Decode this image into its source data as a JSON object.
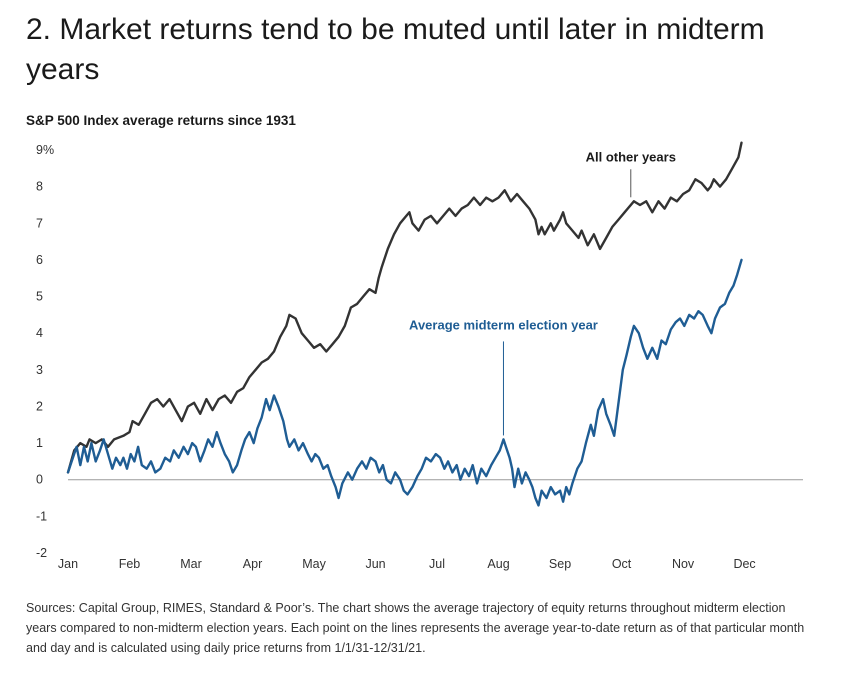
{
  "title": "2. Market returns tend to be muted until later in midterm years",
  "chart_data": {
    "type": "line",
    "subtitle": "S&P 500 Index average returns since 1931",
    "x_categories": [
      "Jan",
      "Feb",
      "Mar",
      "Apr",
      "May",
      "Jun",
      "Jul",
      "Aug",
      "Sep",
      "Oct",
      "Nov",
      "Dec"
    ],
    "y_ticks": [
      "9%",
      "8",
      "7",
      "6",
      "5",
      "4",
      "3",
      "2",
      "1",
      "0",
      "-1",
      "-2"
    ],
    "ylim": [
      -2,
      9
    ],
    "x_range": [
      1,
      12.95
    ],
    "grid": false,
    "zero_line": true,
    "series": [
      {
        "name": "All other years",
        "color": "#333333",
        "points": [
          [
            1.0,
            0.2
          ],
          [
            1.1,
            0.8
          ],
          [
            1.2,
            1.0
          ],
          [
            1.3,
            0.9
          ],
          [
            1.35,
            1.1
          ],
          [
            1.45,
            1.0
          ],
          [
            1.55,
            1.1
          ],
          [
            1.65,
            0.9
          ],
          [
            1.75,
            1.1
          ],
          [
            1.9,
            1.2
          ],
          [
            2.0,
            1.3
          ],
          [
            2.05,
            1.6
          ],
          [
            2.15,
            1.5
          ],
          [
            2.25,
            1.8
          ],
          [
            2.35,
            2.1
          ],
          [
            2.45,
            2.2
          ],
          [
            2.55,
            2.0
          ],
          [
            2.65,
            2.2
          ],
          [
            2.75,
            1.9
          ],
          [
            2.85,
            1.6
          ],
          [
            2.95,
            2.0
          ],
          [
            3.05,
            2.1
          ],
          [
            3.15,
            1.8
          ],
          [
            3.25,
            2.2
          ],
          [
            3.35,
            1.9
          ],
          [
            3.45,
            2.2
          ],
          [
            3.55,
            2.3
          ],
          [
            3.65,
            2.1
          ],
          [
            3.75,
            2.4
          ],
          [
            3.85,
            2.5
          ],
          [
            3.95,
            2.8
          ],
          [
            4.05,
            3.0
          ],
          [
            4.15,
            3.2
          ],
          [
            4.25,
            3.3
          ],
          [
            4.35,
            3.5
          ],
          [
            4.45,
            3.9
          ],
          [
            4.55,
            4.2
          ],
          [
            4.6,
            4.5
          ],
          [
            4.7,
            4.4
          ],
          [
            4.8,
            4.0
          ],
          [
            4.9,
            3.8
          ],
          [
            5.0,
            3.6
          ],
          [
            5.1,
            3.7
          ],
          [
            5.2,
            3.5
          ],
          [
            5.3,
            3.7
          ],
          [
            5.4,
            3.9
          ],
          [
            5.5,
            4.2
          ],
          [
            5.6,
            4.7
          ],
          [
            5.7,
            4.8
          ],
          [
            5.8,
            5.0
          ],
          [
            5.9,
            5.2
          ],
          [
            6.0,
            5.1
          ],
          [
            6.05,
            5.5
          ],
          [
            6.1,
            5.8
          ],
          [
            6.2,
            6.3
          ],
          [
            6.3,
            6.7
          ],
          [
            6.4,
            7.0
          ],
          [
            6.5,
            7.2
          ],
          [
            6.55,
            7.3
          ],
          [
            6.6,
            7.0
          ],
          [
            6.7,
            6.8
          ],
          [
            6.8,
            7.1
          ],
          [
            6.9,
            7.2
          ],
          [
            7.0,
            7.0
          ],
          [
            7.1,
            7.2
          ],
          [
            7.2,
            7.4
          ],
          [
            7.3,
            7.2
          ],
          [
            7.4,
            7.4
          ],
          [
            7.5,
            7.5
          ],
          [
            7.6,
            7.7
          ],
          [
            7.7,
            7.5
          ],
          [
            7.8,
            7.7
          ],
          [
            7.9,
            7.6
          ],
          [
            8.0,
            7.7
          ],
          [
            8.1,
            7.9
          ],
          [
            8.2,
            7.6
          ],
          [
            8.3,
            7.8
          ],
          [
            8.4,
            7.6
          ],
          [
            8.5,
            7.4
          ],
          [
            8.6,
            7.1
          ],
          [
            8.65,
            6.7
          ],
          [
            8.7,
            6.9
          ],
          [
            8.75,
            6.7
          ],
          [
            8.85,
            7.0
          ],
          [
            8.9,
            6.8
          ],
          [
            9.0,
            7.1
          ],
          [
            9.05,
            7.3
          ],
          [
            9.1,
            7.0
          ],
          [
            9.2,
            6.8
          ],
          [
            9.3,
            6.6
          ],
          [
            9.35,
            6.8
          ],
          [
            9.45,
            6.4
          ],
          [
            9.55,
            6.7
          ],
          [
            9.65,
            6.3
          ],
          [
            9.75,
            6.6
          ],
          [
            9.85,
            6.9
          ],
          [
            9.95,
            7.1
          ],
          [
            10.05,
            7.3
          ],
          [
            10.1,
            7.4
          ],
          [
            10.2,
            7.6
          ],
          [
            10.3,
            7.5
          ],
          [
            10.4,
            7.6
          ],
          [
            10.5,
            7.3
          ],
          [
            10.6,
            7.6
          ],
          [
            10.7,
            7.4
          ],
          [
            10.8,
            7.7
          ],
          [
            10.9,
            7.6
          ],
          [
            11.0,
            7.8
          ],
          [
            11.1,
            7.9
          ],
          [
            11.2,
            8.2
          ],
          [
            11.3,
            8.1
          ],
          [
            11.4,
            7.9
          ],
          [
            11.45,
            8.0
          ],
          [
            11.5,
            8.2
          ],
          [
            11.6,
            8.0
          ],
          [
            11.7,
            8.2
          ],
          [
            11.8,
            8.5
          ],
          [
            11.9,
            8.8
          ],
          [
            11.95,
            9.2
          ]
        ]
      },
      {
        "name": "Average midterm election year",
        "color": "#1f5d94",
        "points": [
          [
            1.0,
            0.2
          ],
          [
            1.08,
            0.6
          ],
          [
            1.14,
            0.9
          ],
          [
            1.2,
            0.4
          ],
          [
            1.26,
            0.9
          ],
          [
            1.32,
            0.5
          ],
          [
            1.38,
            1.0
          ],
          [
            1.45,
            0.5
          ],
          [
            1.52,
            0.8
          ],
          [
            1.58,
            1.1
          ],
          [
            1.65,
            0.7
          ],
          [
            1.72,
            0.3
          ],
          [
            1.78,
            0.6
          ],
          [
            1.85,
            0.4
          ],
          [
            1.9,
            0.6
          ],
          [
            1.96,
            0.3
          ],
          [
            2.02,
            0.7
          ],
          [
            2.08,
            0.5
          ],
          [
            2.14,
            0.9
          ],
          [
            2.2,
            0.4
          ],
          [
            2.28,
            0.3
          ],
          [
            2.35,
            0.5
          ],
          [
            2.42,
            0.2
          ],
          [
            2.5,
            0.3
          ],
          [
            2.58,
            0.6
          ],
          [
            2.66,
            0.5
          ],
          [
            2.72,
            0.8
          ],
          [
            2.8,
            0.6
          ],
          [
            2.88,
            0.9
          ],
          [
            2.95,
            0.7
          ],
          [
            3.02,
            1.0
          ],
          [
            3.08,
            0.9
          ],
          [
            3.15,
            0.5
          ],
          [
            3.22,
            0.8
          ],
          [
            3.28,
            1.1
          ],
          [
            3.35,
            0.9
          ],
          [
            3.42,
            1.3
          ],
          [
            3.48,
            1.0
          ],
          [
            3.55,
            0.7
          ],
          [
            3.62,
            0.5
          ],
          [
            3.68,
            0.2
          ],
          [
            3.75,
            0.4
          ],
          [
            3.82,
            0.8
          ],
          [
            3.88,
            1.1
          ],
          [
            3.95,
            1.3
          ],
          [
            4.02,
            1.0
          ],
          [
            4.08,
            1.4
          ],
          [
            4.15,
            1.7
          ],
          [
            4.22,
            2.2
          ],
          [
            4.28,
            1.9
          ],
          [
            4.35,
            2.3
          ],
          [
            4.42,
            2.0
          ],
          [
            4.5,
            1.6
          ],
          [
            4.56,
            1.1
          ],
          [
            4.6,
            0.9
          ],
          [
            4.68,
            1.1
          ],
          [
            4.75,
            0.8
          ],
          [
            4.82,
            1.0
          ],
          [
            4.9,
            0.7
          ],
          [
            4.96,
            0.5
          ],
          [
            5.02,
            0.7
          ],
          [
            5.08,
            0.6
          ],
          [
            5.15,
            0.3
          ],
          [
            5.22,
            0.4
          ],
          [
            5.28,
            0.1
          ],
          [
            5.35,
            -0.2
          ],
          [
            5.4,
            -0.5
          ],
          [
            5.46,
            -0.1
          ],
          [
            5.55,
            0.2
          ],
          [
            5.62,
            0.0
          ],
          [
            5.7,
            0.3
          ],
          [
            5.78,
            0.5
          ],
          [
            5.85,
            0.3
          ],
          [
            5.92,
            0.6
          ],
          [
            6.0,
            0.5
          ],
          [
            6.06,
            0.2
          ],
          [
            6.12,
            0.4
          ],
          [
            6.18,
            0.0
          ],
          [
            6.25,
            -0.1
          ],
          [
            6.32,
            0.2
          ],
          [
            6.4,
            0.0
          ],
          [
            6.46,
            -0.3
          ],
          [
            6.52,
            -0.4
          ],
          [
            6.6,
            -0.2
          ],
          [
            6.68,
            0.1
          ],
          [
            6.75,
            0.3
          ],
          [
            6.82,
            0.6
          ],
          [
            6.9,
            0.5
          ],
          [
            6.98,
            0.7
          ],
          [
            7.05,
            0.6
          ],
          [
            7.12,
            0.3
          ],
          [
            7.18,
            0.5
          ],
          [
            7.25,
            0.2
          ],
          [
            7.32,
            0.4
          ],
          [
            7.38,
            0.0
          ],
          [
            7.45,
            0.3
          ],
          [
            7.52,
            0.1
          ],
          [
            7.58,
            0.4
          ],
          [
            7.65,
            -0.1
          ],
          [
            7.72,
            0.3
          ],
          [
            7.8,
            0.1
          ],
          [
            7.88,
            0.4
          ],
          [
            7.95,
            0.6
          ],
          [
            8.02,
            0.8
          ],
          [
            8.08,
            1.1
          ],
          [
            8.12,
            0.9
          ],
          [
            8.18,
            0.6
          ],
          [
            8.22,
            0.3
          ],
          [
            8.26,
            -0.2
          ],
          [
            8.32,
            0.3
          ],
          [
            8.38,
            -0.1
          ],
          [
            8.44,
            0.2
          ],
          [
            8.5,
            0.0
          ],
          [
            8.55,
            -0.2
          ],
          [
            8.6,
            -0.5
          ],
          [
            8.65,
            -0.7
          ],
          [
            8.7,
            -0.3
          ],
          [
            8.78,
            -0.5
          ],
          [
            8.85,
            -0.2
          ],
          [
            8.92,
            -0.4
          ],
          [
            9.0,
            -0.3
          ],
          [
            9.05,
            -0.6
          ],
          [
            9.1,
            -0.2
          ],
          [
            9.15,
            -0.4
          ],
          [
            9.2,
            -0.1
          ],
          [
            9.28,
            0.3
          ],
          [
            9.35,
            0.5
          ],
          [
            9.42,
            1.0
          ],
          [
            9.5,
            1.5
          ],
          [
            9.55,
            1.2
          ],
          [
            9.62,
            1.9
          ],
          [
            9.7,
            2.2
          ],
          [
            9.75,
            1.8
          ],
          [
            9.82,
            1.5
          ],
          [
            9.88,
            1.2
          ],
          [
            9.95,
            2.1
          ],
          [
            10.02,
            3.0
          ],
          [
            10.08,
            3.4
          ],
          [
            10.15,
            3.9
          ],
          [
            10.2,
            4.2
          ],
          [
            10.28,
            4.0
          ],
          [
            10.35,
            3.6
          ],
          [
            10.42,
            3.3
          ],
          [
            10.5,
            3.6
          ],
          [
            10.58,
            3.3
          ],
          [
            10.65,
            3.8
          ],
          [
            10.72,
            3.7
          ],
          [
            10.8,
            4.1
          ],
          [
            10.88,
            4.3
          ],
          [
            10.95,
            4.4
          ],
          [
            11.02,
            4.2
          ],
          [
            11.1,
            4.5
          ],
          [
            11.18,
            4.4
          ],
          [
            11.25,
            4.6
          ],
          [
            11.32,
            4.5
          ],
          [
            11.4,
            4.2
          ],
          [
            11.46,
            4.0
          ],
          [
            11.52,
            4.4
          ],
          [
            11.6,
            4.7
          ],
          [
            11.68,
            4.8
          ],
          [
            11.75,
            5.1
          ],
          [
            11.82,
            5.3
          ],
          [
            11.88,
            5.6
          ],
          [
            11.95,
            6.0
          ]
        ]
      }
    ],
    "annotations": [
      {
        "text": "All other years",
        "series": 0,
        "x": 10.15,
        "y": 7.6,
        "color": "#1a1a1a",
        "bold": true
      },
      {
        "text": "Average midterm election year",
        "series": 1,
        "x": 8.08,
        "y": 1.1,
        "color": "#1f5d94",
        "bold": true
      }
    ]
  },
  "sources": "Sources: Capital Group, RIMES, Standard & Poor’s. The chart shows the average trajectory of equity returns throughout midterm election years compared to non-midterm election years. Each point on the lines represents the average year-to-date return as of that particular month and day and is calculated using daily price returns from 1/1/31-12/31/21."
}
